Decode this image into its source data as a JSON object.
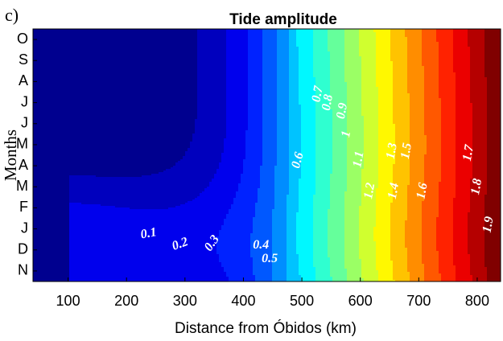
{
  "panel_label": "c)",
  "chart_data": {
    "type": "heatmap",
    "title": "Tide amplitude",
    "xlabel": "Distance from Óbidos (km)",
    "ylabel": "Months",
    "x_ticks": [
      100,
      200,
      300,
      400,
      500,
      600,
      700,
      800
    ],
    "xlim": [
      40,
      840
    ],
    "y_categories": [
      "N",
      "D",
      "J",
      "F",
      "M",
      "A",
      "M",
      "J",
      "J",
      "A",
      "S",
      "O"
    ],
    "contour_levels": [
      0.1,
      0.2,
      0.3,
      0.4,
      0.5,
      0.6,
      0.7,
      0.8,
      0.9,
      1.0,
      1.1,
      1.2,
      1.3,
      1.4,
      1.5,
      1.6,
      1.7,
      1.8,
      1.9
    ],
    "colormap": [
      "#00008f",
      "#0000ff",
      "#0080ff",
      "#00ffff",
      "#80ff80",
      "#ffff00",
      "#ff8000",
      "#ff0000",
      "#800000"
    ],
    "contour_labels": [
      {
        "text": "0.1",
        "x": 238,
        "m": 1.75,
        "rot": -10
      },
      {
        "text": "0.2",
        "x": 292,
        "m": 1.25,
        "rot": -20
      },
      {
        "text": "0.3",
        "x": 347,
        "m": 1.3,
        "rot": -55
      },
      {
        "text": "0.4",
        "x": 430,
        "m": 1.2,
        "rot": 0
      },
      {
        "text": "0.5",
        "x": 445,
        "m": 0.55,
        "rot": 0
      },
      {
        "text": "0.6",
        "x": 494,
        "m": 5.25,
        "rot": -75
      },
      {
        "text": "0.7",
        "x": 528,
        "m": 8.4,
        "rot": -80
      },
      {
        "text": "0.8",
        "x": 545,
        "m": 8.0,
        "rot": -80
      },
      {
        "text": "0.9",
        "x": 570,
        "m": 7.6,
        "rot": -80
      },
      {
        "text": "1",
        "x": 577,
        "m": 6.5,
        "rot": -80
      },
      {
        "text": "1.1",
        "x": 598,
        "m": 5.3,
        "rot": -80
      },
      {
        "text": "1.2",
        "x": 617,
        "m": 3.8,
        "rot": -80
      },
      {
        "text": "1.3",
        "x": 655,
        "m": 5.7,
        "rot": -80
      },
      {
        "text": "1.4",
        "x": 658,
        "m": 3.8,
        "rot": -80
      },
      {
        "text": "1.5",
        "x": 680,
        "m": 5.7,
        "rot": -80
      },
      {
        "text": "1.6",
        "x": 707,
        "m": 3.8,
        "rot": -80
      },
      {
        "text": "1.7",
        "x": 786,
        "m": 5.6,
        "rot": -80
      },
      {
        "text": "1.8",
        "x": 800,
        "m": 4.0,
        "rot": -80
      },
      {
        "text": "1.9",
        "x": 820,
        "m": 2.2,
        "rot": -80
      }
    ]
  }
}
